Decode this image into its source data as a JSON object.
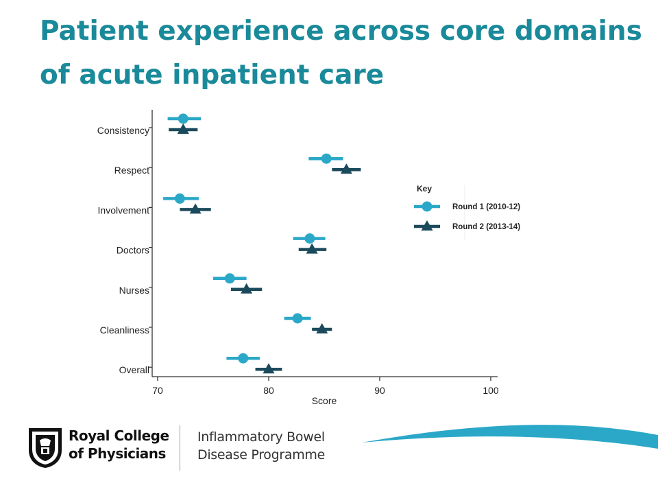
{
  "slide": {
    "title": "Patient experience across core domains of acute inpatient care"
  },
  "chart_data": {
    "type": "scatter",
    "categories": [
      "Consistency",
      "Respect",
      "Involvement",
      "Doctors",
      "Nurses",
      "Cleanliness",
      "Overall"
    ],
    "xlabel": "Score",
    "ylabel": "",
    "xlim": [
      70,
      100
    ],
    "xticks": [
      70,
      80,
      90,
      100
    ],
    "grid": false,
    "legend_title": "Key",
    "legend_position": "right",
    "series": [
      {
        "name": "Round 1 (2010-12)",
        "marker": "circle",
        "color": "#2ba8c8",
        "values": [
          72.3,
          85.2,
          72.0,
          83.7,
          76.5,
          82.6,
          77.7
        ],
        "ci_low": [
          70.9,
          83.6,
          70.5,
          82.2,
          75.0,
          81.4,
          76.2
        ],
        "ci_high": [
          73.9,
          86.7,
          73.7,
          85.1,
          78.0,
          83.8,
          79.2
        ]
      },
      {
        "name": "Round 2 (2013-14)",
        "marker": "triangle",
        "color": "#1b4a5c",
        "values": [
          72.3,
          87.0,
          73.4,
          83.9,
          78.0,
          84.8,
          80.0
        ],
        "ci_low": [
          71.0,
          85.7,
          72.0,
          82.7,
          76.6,
          83.9,
          78.8
        ],
        "ci_high": [
          73.6,
          88.3,
          74.8,
          85.2,
          79.4,
          85.7,
          81.2
        ]
      }
    ]
  },
  "footer": {
    "org_line1": "Royal College",
    "org_line2": "of Physicians",
    "programme_line1": "Inflammatory Bowel",
    "programme_line2": "Disease Programme",
    "swoosh_color": "#2ba8c8"
  }
}
